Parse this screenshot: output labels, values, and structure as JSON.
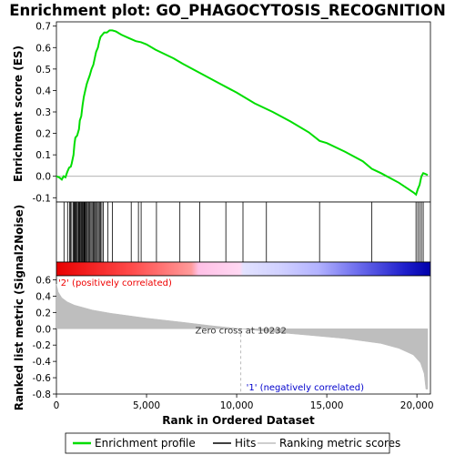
{
  "title": "Enrichment plot: GO_PHAGOCYTOSIS_RECOGNITION",
  "colors": {
    "enrichment_line": "#00dd00",
    "hit_line": "#000000",
    "metric_fill": "#bebebe",
    "positive_label": "#ee0000",
    "negative_label": "#0000cc"
  },
  "chart_data": {
    "type": "line",
    "x_axis": {
      "label": "Rank in Ordered Dataset",
      "range": [
        0,
        20750
      ],
      "ticks": [
        0,
        5000,
        10000,
        15000,
        20000
      ],
      "tick_labels": [
        "0",
        "5,000",
        "10,000",
        "15,000",
        "20,000"
      ]
    },
    "es_panel": {
      "ylabel": "Enrichment score (ES)",
      "ylim": [
        -0.12,
        0.72
      ],
      "yticks": [
        -0.1,
        0.0,
        0.1,
        0.2,
        0.3,
        0.4,
        0.5,
        0.6,
        0.7
      ],
      "ytick_labels": [
        "-0.1",
        "0.0",
        "0.1",
        "0.2",
        "0.3",
        "0.4",
        "0.5",
        "0.6",
        "0.7"
      ],
      "series_name": "Enrichment profile",
      "points": [
        [
          0,
          0.0
        ],
        [
          150,
          -0.005
        ],
        [
          300,
          -0.015
        ],
        [
          400,
          0.0
        ],
        [
          500,
          -0.005
        ],
        [
          600,
          0.02
        ],
        [
          700,
          0.04
        ],
        [
          800,
          0.045
        ],
        [
          850,
          0.06
        ],
        [
          950,
          0.1
        ],
        [
          1000,
          0.15
        ],
        [
          1050,
          0.18
        ],
        [
          1150,
          0.19
        ],
        [
          1250,
          0.22
        ],
        [
          1300,
          0.26
        ],
        [
          1380,
          0.28
        ],
        [
          1450,
          0.33
        ],
        [
          1520,
          0.37
        ],
        [
          1600,
          0.4
        ],
        [
          1680,
          0.43
        ],
        [
          1760,
          0.45
        ],
        [
          1850,
          0.47
        ],
        [
          1950,
          0.5
        ],
        [
          2050,
          0.52
        ],
        [
          2150,
          0.56
        ],
        [
          2200,
          0.58
        ],
        [
          2300,
          0.6
        ],
        [
          2380,
          0.63
        ],
        [
          2450,
          0.65
        ],
        [
          2550,
          0.66
        ],
        [
          2650,
          0.67
        ],
        [
          2800,
          0.67
        ],
        [
          2950,
          0.68
        ],
        [
          3100,
          0.68
        ],
        [
          3300,
          0.675
        ],
        [
          3600,
          0.66
        ],
        [
          4000,
          0.645
        ],
        [
          4400,
          0.63
        ],
        [
          4700,
          0.625
        ],
        [
          5000,
          0.615
        ],
        [
          5500,
          0.59
        ],
        [
          6000,
          0.57
        ],
        [
          6500,
          0.55
        ],
        [
          7000,
          0.525
        ],
        [
          8000,
          0.48
        ],
        [
          9000,
          0.435
        ],
        [
          10000,
          0.39
        ],
        [
          11000,
          0.34
        ],
        [
          12000,
          0.3
        ],
        [
          13000,
          0.255
        ],
        [
          14000,
          0.205
        ],
        [
          14600,
          0.165
        ],
        [
          15000,
          0.155
        ],
        [
          16000,
          0.115
        ],
        [
          17000,
          0.07
        ],
        [
          17500,
          0.035
        ],
        [
          18000,
          0.015
        ],
        [
          19000,
          -0.03
        ],
        [
          19800,
          -0.075
        ],
        [
          19950,
          -0.085
        ],
        [
          20050,
          -0.06
        ],
        [
          20150,
          -0.04
        ],
        [
          20250,
          0.0
        ],
        [
          20350,
          0.015
        ],
        [
          20500,
          0.01
        ],
        [
          20600,
          0.005
        ]
      ]
    },
    "hits": [
      420,
      620,
      730,
      780,
      850,
      930,
      980,
      1020,
      1060,
      1110,
      1160,
      1220,
      1260,
      1300,
      1350,
      1390,
      1430,
      1470,
      1520,
      1560,
      1600,
      1650,
      1700,
      1760,
      1810,
      1860,
      1920,
      1980,
      2040,
      2100,
      2160,
      2210,
      2270,
      2330,
      2390,
      2450,
      2520,
      2600,
      2860,
      3100,
      4150,
      4550,
      4700,
      5550,
      6850,
      7950,
      9400,
      10350,
      11650,
      14600,
      17500,
      19950,
      20050,
      20150,
      20250,
      20350
    ],
    "metric_panel": {
      "ylabel": "Ranked list metric (Signal2Noise)",
      "ylim": [
        -0.8,
        0.65
      ],
      "yticks": [
        -0.8,
        -0.6,
        -0.4,
        -0.2,
        0.0,
        0.2,
        0.4,
        0.6
      ],
      "ytick_labels": [
        "-0.8",
        "-0.6",
        "-0.4",
        "-0.2",
        "0.0",
        "0.2",
        "0.4",
        "0.6"
      ],
      "series_name": "Ranking metric scores",
      "points": [
        [
          0,
          0.55
        ],
        [
          100,
          0.45
        ],
        [
          300,
          0.38
        ],
        [
          600,
          0.33
        ],
        [
          1000,
          0.29
        ],
        [
          2000,
          0.23
        ],
        [
          3000,
          0.19
        ],
        [
          5000,
          0.13
        ],
        [
          7000,
          0.08
        ],
        [
          8500,
          0.04
        ],
        [
          10232,
          0.0
        ],
        [
          12000,
          -0.04
        ],
        [
          14000,
          -0.08
        ],
        [
          16000,
          -0.12
        ],
        [
          18000,
          -0.18
        ],
        [
          19000,
          -0.24
        ],
        [
          19800,
          -0.32
        ],
        [
          20200,
          -0.42
        ],
        [
          20400,
          -0.55
        ],
        [
          20500,
          -0.74
        ],
        [
          20600,
          -0.74
        ]
      ]
    },
    "positive_label": "'2' (positively correlated)",
    "negative_label": "'1' (negatively correlated)",
    "zero_cross_label": "Zero cross at 10232",
    "zero_cross": 10232,
    "legend": {
      "placement": "bottom",
      "entries": [
        "Enrichment profile",
        "Hits",
        "Ranking metric scores"
      ]
    }
  }
}
